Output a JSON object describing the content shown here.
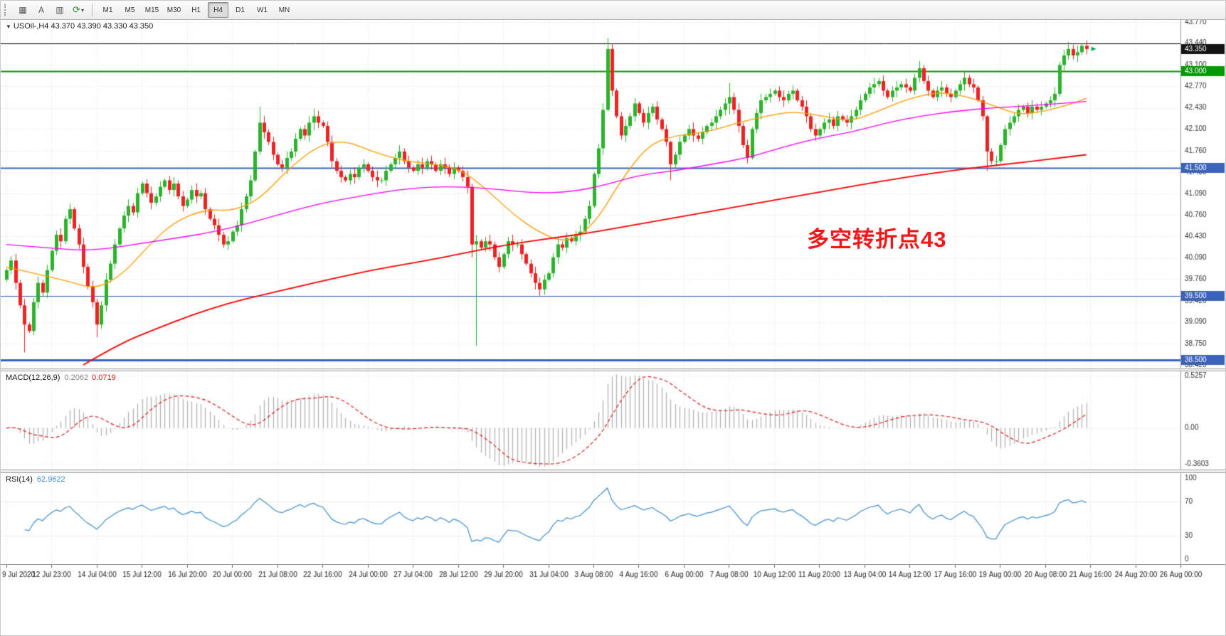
{
  "toolbar": {
    "icons": [
      {
        "name": "chart-grid-icon",
        "glyph": "▦"
      },
      {
        "name": "cursor-icon",
        "glyph": "A"
      },
      {
        "name": "chart-template-icon",
        "glyph": "▥"
      },
      {
        "name": "refresh-cycle-icon",
        "glyph": "⟳"
      }
    ],
    "dropdown_caret": "▾",
    "timeframes": [
      "M1",
      "M5",
      "M15",
      "M30",
      "H1",
      "H4",
      "D1",
      "W1",
      "MN"
    ],
    "active_timeframe": "H4"
  },
  "chart": {
    "collapse_icon": "▼",
    "symbol_text": "USOil-,H4",
    "quote_text": "43.370 43.390 43.330 43.350",
    "annotation": {
      "text": "多空转折点43",
      "color": "#f81616"
    }
  },
  "chart_data": {
    "type": "candlestick",
    "symbol": "USOil-",
    "timeframe": "H4",
    "quote": {
      "open": 43.37,
      "high": 43.39,
      "low": 43.33,
      "close": 43.35
    },
    "price_range": [
      38.42,
      43.77
    ],
    "first_open": 39.75,
    "closes": [
      39.9,
      40.05,
      39.7,
      39.35,
      39.05,
      38.95,
      39.4,
      39.7,
      39.55,
      39.9,
      40.2,
      40.45,
      40.35,
      40.7,
      40.85,
      40.55,
      40.3,
      39.95,
      39.65,
      39.4,
      39.05,
      39.35,
      39.75,
      40.0,
      40.3,
      40.55,
      40.75,
      40.9,
      40.8,
      41.1,
      41.25,
      41.1,
      40.95,
      41.05,
      41.2,
      41.3,
      41.15,
      41.25,
      41.05,
      40.9,
      41.0,
      41.15,
      41.05,
      41.1,
      40.85,
      40.7,
      40.6,
      40.45,
      40.3,
      40.35,
      40.5,
      40.6,
      40.85,
      41.05,
      41.3,
      41.75,
      42.2,
      42.05,
      41.9,
      41.7,
      41.55,
      41.5,
      41.65,
      41.75,
      41.95,
      42.1,
      42.0,
      42.2,
      42.3,
      42.2,
      42.15,
      41.9,
      41.6,
      41.45,
      41.35,
      41.3,
      41.4,
      41.35,
      41.5,
      41.55,
      41.45,
      41.35,
      41.3,
      41.3,
      41.45,
      41.55,
      41.65,
      41.75,
      41.6,
      41.5,
      41.45,
      41.55,
      41.5,
      41.6,
      41.55,
      41.45,
      41.55,
      41.5,
      41.4,
      41.5,
      41.45,
      41.35,
      41.2,
      40.3,
      40.35,
      40.25,
      40.35,
      40.3,
      40.1,
      39.95,
      40.15,
      40.35,
      40.3,
      40.3,
      40.15,
      40.0,
      39.85,
      39.7,
      39.6,
      39.75,
      39.85,
      40.1,
      40.3,
      40.25,
      40.4,
      40.35,
      40.45,
      40.5,
      40.7,
      40.9,
      41.4,
      41.8,
      42.4,
      43.35,
      42.7,
      42.3,
      42.0,
      42.15,
      42.3,
      42.5,
      42.35,
      42.2,
      42.35,
      42.45,
      42.25,
      42.1,
      41.9,
      41.55,
      41.7,
      41.9,
      42.0,
      42.1,
      42.0,
      41.95,
      42.05,
      42.15,
      42.2,
      42.3,
      42.4,
      42.5,
      42.6,
      42.4,
      42.15,
      41.85,
      41.65,
      42.1,
      42.35,
      42.55,
      42.6,
      42.65,
      42.7,
      42.6,
      42.55,
      42.65,
      42.7,
      42.55,
      42.45,
      42.3,
      42.1,
      42.0,
      42.1,
      42.2,
      42.25,
      42.15,
      42.3,
      42.25,
      42.2,
      42.3,
      42.4,
      42.55,
      42.65,
      42.75,
      42.8,
      42.85,
      42.7,
      42.6,
      42.7,
      42.75,
      42.8,
      42.75,
      42.7,
      42.9,
      43.05,
      42.85,
      42.7,
      42.6,
      42.7,
      42.75,
      42.65,
      42.6,
      42.7,
      42.8,
      42.9,
      42.8,
      42.75,
      42.55,
      42.3,
      41.75,
      41.6,
      41.6,
      41.85,
      42.1,
      42.2,
      42.3,
      42.4,
      42.45,
      42.35,
      42.45,
      42.4,
      42.45,
      42.5,
      42.55,
      42.65,
      43.1,
      43.25,
      43.35,
      43.25,
      43.3,
      43.4,
      43.35
    ],
    "wick_overrides": {
      "4": [
        39.45,
        38.62
      ],
      "20": [
        39.45,
        38.85
      ],
      "56": [
        42.45,
        41.7
      ],
      "68": [
        42.42,
        42.08
      ],
      "103": [
        41.25,
        40.1
      ],
      "104": [
        40.45,
        38.72
      ],
      "118": [
        39.78,
        39.5
      ],
      "133": [
        43.52,
        42.38
      ],
      "147": [
        41.92,
        41.3
      ],
      "160": [
        42.82,
        42.33
      ],
      "202": [
        43.16,
        42.83
      ],
      "212": [
        43.0,
        42.7
      ],
      "217": [
        42.32,
        41.45
      ],
      "235": [
        43.46,
        43.18
      ],
      "238": [
        43.44,
        43.26
      ]
    },
    "levels": [
      {
        "price": 43.44,
        "color": "#000000",
        "width": 1,
        "badge": null,
        "badge_color": null
      },
      {
        "price": 43.0,
        "color": "#009900",
        "width": 2,
        "badge": "43.000",
        "badge_color": "#009900"
      },
      {
        "price": 41.5,
        "color": "#3a62b8",
        "width": 2,
        "badge": "41.500",
        "badge_color": "#3a62b8"
      },
      {
        "price": 39.5,
        "color": "#3a62b8",
        "width": 1,
        "badge": "39.500",
        "badge_color": "#3a62b8"
      },
      {
        "price": 38.5,
        "color": "#3a62b8",
        "width": 3,
        "badge": "38.500",
        "badge_color": "#3a62b8"
      }
    ],
    "current_price": {
      "value": 43.35,
      "label": "43.350",
      "badge_color": "#141414"
    },
    "end_marker": {
      "price": 43.35,
      "color": "#00a650"
    },
    "moving_averages": [
      {
        "name": "ma-fast-orange",
        "color": "#ff9c00",
        "width": 1.3,
        "points": [
          [
            0,
            39.95
          ],
          [
            8,
            39.82
          ],
          [
            14,
            39.72
          ],
          [
            20,
            39.6
          ],
          [
            26,
            39.85
          ],
          [
            31,
            40.25
          ],
          [
            37,
            40.65
          ],
          [
            44,
            40.85
          ],
          [
            50,
            40.82
          ],
          [
            56,
            41.0
          ],
          [
            62,
            41.45
          ],
          [
            69,
            41.85
          ],
          [
            75,
            41.92
          ],
          [
            81,
            41.75
          ],
          [
            87,
            41.62
          ],
          [
            93,
            41.56
          ],
          [
            100,
            41.5
          ],
          [
            106,
            41.18
          ],
          [
            112,
            40.78
          ],
          [
            118,
            40.48
          ],
          [
            124,
            40.32
          ],
          [
            130,
            40.6
          ],
          [
            136,
            41.3
          ],
          [
            142,
            41.85
          ],
          [
            148,
            42.0
          ],
          [
            155,
            42.05
          ],
          [
            162,
            42.2
          ],
          [
            168,
            42.3
          ],
          [
            174,
            42.38
          ],
          [
            181,
            42.3
          ],
          [
            187,
            42.22
          ],
          [
            193,
            42.38
          ],
          [
            199,
            42.56
          ],
          [
            206,
            42.68
          ],
          [
            212,
            42.62
          ],
          [
            218,
            42.48
          ],
          [
            224,
            42.32
          ],
          [
            230,
            42.38
          ],
          [
            236,
            42.5
          ],
          [
            239,
            42.58
          ]
        ]
      },
      {
        "name": "ma-mid-magenta",
        "color": "#ff00ff",
        "width": 1.3,
        "points": [
          [
            0,
            40.3
          ],
          [
            10,
            40.24
          ],
          [
            19,
            40.2
          ],
          [
            31,
            40.33
          ],
          [
            47,
            40.5
          ],
          [
            62,
            40.8
          ],
          [
            70,
            40.95
          ],
          [
            78,
            41.05
          ],
          [
            86,
            41.15
          ],
          [
            94,
            41.2
          ],
          [
            101,
            41.2
          ],
          [
            109,
            41.16
          ],
          [
            117,
            41.1
          ],
          [
            125,
            41.12
          ],
          [
            132,
            41.22
          ],
          [
            140,
            41.38
          ],
          [
            148,
            41.45
          ],
          [
            156,
            41.55
          ],
          [
            164,
            41.65
          ],
          [
            171,
            41.8
          ],
          [
            179,
            41.95
          ],
          [
            187,
            42.05
          ],
          [
            195,
            42.2
          ],
          [
            202,
            42.3
          ],
          [
            210,
            42.38
          ],
          [
            218,
            42.43
          ],
          [
            226,
            42.46
          ],
          [
            233,
            42.5
          ],
          [
            239,
            42.53
          ]
        ]
      },
      {
        "name": "ma-slow-red",
        "color": "#ff0000",
        "width": 1.8,
        "points": [
          [
            17,
            38.42
          ],
          [
            25,
            38.75
          ],
          [
            33,
            38.98
          ],
          [
            41,
            39.2
          ],
          [
            49,
            39.38
          ],
          [
            57,
            39.52
          ],
          [
            65,
            39.65
          ],
          [
            73,
            39.78
          ],
          [
            81,
            39.9
          ],
          [
            89,
            40.0
          ],
          [
            97,
            40.1
          ],
          [
            105,
            40.22
          ],
          [
            113,
            40.32
          ],
          [
            121,
            40.4
          ],
          [
            129,
            40.48
          ],
          [
            137,
            40.58
          ],
          [
            145,
            40.68
          ],
          [
            153,
            40.78
          ],
          [
            161,
            40.88
          ],
          [
            169,
            40.98
          ],
          [
            177,
            41.08
          ],
          [
            185,
            41.18
          ],
          [
            193,
            41.28
          ],
          [
            201,
            41.37
          ],
          [
            209,
            41.45
          ],
          [
            217,
            41.52
          ],
          [
            225,
            41.58
          ],
          [
            233,
            41.65
          ],
          [
            239,
            41.7
          ]
        ]
      }
    ],
    "price_axis": [
      "43.770",
      "43.440",
      "43.100",
      "42.770",
      "42.430",
      "42.100",
      "41.760",
      "41.430",
      "41.090",
      "40.760",
      "40.430",
      "40.090",
      "39.760",
      "39.420",
      "39.090",
      "38.750",
      "38.420"
    ],
    "time_labels": [
      "9 Jul 2020",
      "12 Jul 23:00",
      "14 Jul 04:00",
      "15 Jul 12:00",
      "16 Jul 20:00",
      "20 Jul 00:00",
      "21 Jul 08:00",
      "22 Jul 16:00",
      "24 Jul 00:00",
      "27 Jul 04:00",
      "28 Jul 12:00",
      "29 Jul 20:00",
      "31 Jul 04:00",
      "3 Aug 08:00",
      "4 Aug 16:00",
      "6 Aug 00:00",
      "7 Aug 08:00",
      "10 Aug 12:00",
      "11 Aug 20:00",
      "13 Aug 04:00",
      "14 Aug 12:00",
      "17 Aug 16:00",
      "19 Aug 00:00",
      "20 Aug 08:00",
      "21 Aug 16:00",
      "24 Aug 20:00",
      "26 Aug 00:00"
    ],
    "macd": {
      "name": "MACD(12,26,9)",
      "value_main": "0.2062",
      "value_signal": "0.0719",
      "params": [
        12,
        26,
        9
      ],
      "axis": [
        "0.5257",
        "0.00",
        "-0.3603"
      ],
      "range": [
        -0.3603,
        0.5257
      ]
    },
    "rsi": {
      "name": "RSI(14)",
      "value": "62.9622",
      "period": 14,
      "axis": [
        "100",
        "70",
        "30",
        "0"
      ],
      "levels": [
        30,
        70
      ]
    },
    "colors": {
      "up": "#2bb32b",
      "down": "#ee2222",
      "grid": "#e0e0e0",
      "macd_hist": "#b4b4b4",
      "macd_signal": "#e02020",
      "rsi_line": "#3e8ed0",
      "axis_text": "#333333"
    }
  }
}
